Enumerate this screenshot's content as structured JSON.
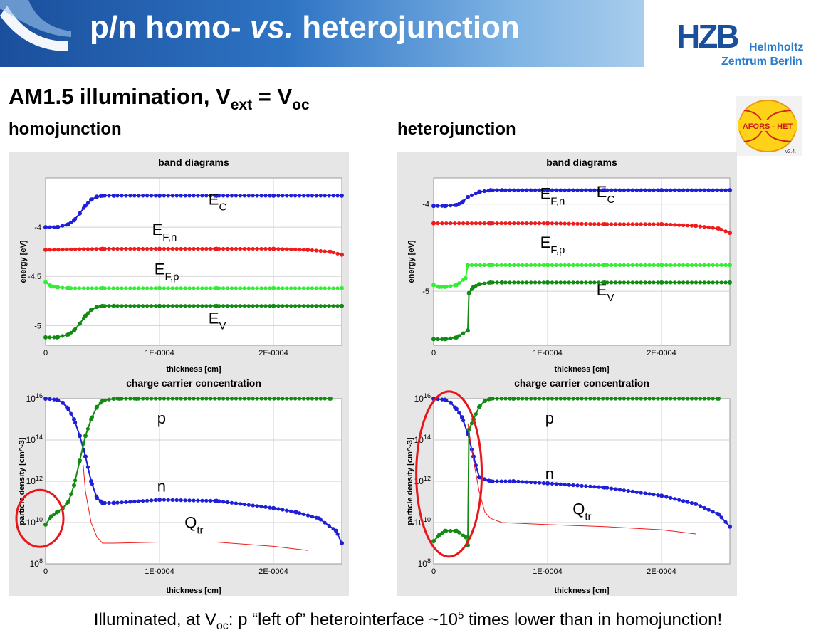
{
  "slide": {
    "title_prefix": "p/n homo- ",
    "title_vs": "vs.",
    "title_suffix": " heterojunction",
    "subtitle_main": "AM1.5 illumination, V",
    "subtitle_sub1": "ext",
    "subtitle_eq": " = V",
    "subtitle_sub2": "oc",
    "logo": {
      "hzb": "HZB",
      "line1": "Helmholtz",
      "line2": "Zentrum Berlin"
    },
    "software_logo": {
      "name": "AFORS - HET",
      "version": "v2.4."
    },
    "footer_pre": "Illuminated, at V",
    "footer_sub": "oc",
    "footer_mid": ": p “left of” heterointerface ~10",
    "footer_sup": "5",
    "footer_post": " times lower than in homojunction!",
    "colors": {
      "Ec": "#1f1fd8",
      "EFn": "#ee1c1c",
      "EFp": "#33ee33",
      "Ev": "#138a13",
      "Qtr": "#ee1c1c",
      "highlight": "#e8151a"
    }
  },
  "chart_data": [
    {
      "id": "homo-band",
      "column_title": "homojunction",
      "type": "line",
      "title": "band diagrams",
      "xlabel": "thickness [cm]",
      "ylabel": "energy [eV]",
      "xlim": [
        0,
        0.00026
      ],
      "ylim": [
        -5.2,
        -3.5
      ],
      "xticks": [
        {
          "v": 0,
          "label": "0"
        },
        {
          "v": 0.0001,
          "label": "1E-0004"
        },
        {
          "v": 0.0002,
          "label": "2E-0004"
        }
      ],
      "yticks": [
        {
          "v": -4,
          "label": "-4"
        },
        {
          "v": -4.5,
          "label": "-4.5"
        },
        {
          "v": -5,
          "label": "-5"
        }
      ],
      "log_y": false,
      "series": [
        {
          "name": "EC",
          "sub": "C",
          "color": "#1f1fd8",
          "x": [
            0,
            1e-05,
            2e-05,
            2.5e-05,
            3e-05,
            3.5e-05,
            4e-05,
            4.5e-05,
            5e-05,
            6e-05,
            0.0001,
            0.00015,
            0.0002,
            0.00026
          ],
          "y": [
            -4.0,
            -4.0,
            -3.97,
            -3.93,
            -3.86,
            -3.78,
            -3.72,
            -3.69,
            -3.68,
            -3.68,
            -3.68,
            -3.68,
            -3.68,
            -3.68
          ]
        },
        {
          "name": "EF,n",
          "sub": "F,n",
          "color": "#ee1c1c",
          "x": [
            0,
            5e-05,
            0.0001,
            0.00015,
            0.0002,
            0.00023,
            0.00025,
            0.00026
          ],
          "y": [
            -4.23,
            -4.22,
            -4.22,
            -4.22,
            -4.22,
            -4.23,
            -4.25,
            -4.28
          ]
        },
        {
          "name": "EF,p",
          "sub": "F,p",
          "color": "#33ee33",
          "x": [
            0,
            5e-06,
            1e-05,
            2e-05,
            5e-05,
            0.0001,
            0.00015,
            0.0002,
            0.00026
          ],
          "y": [
            -4.56,
            -4.6,
            -4.61,
            -4.62,
            -4.62,
            -4.62,
            -4.62,
            -4.62,
            -4.62
          ]
        },
        {
          "name": "EV",
          "sub": "V",
          "color": "#138a13",
          "x": [
            0,
            1e-05,
            2e-05,
            2.5e-05,
            3e-05,
            3.5e-05,
            4e-05,
            4.5e-05,
            5e-05,
            6e-05,
            0.0001,
            0.00015,
            0.0002,
            0.00026
          ],
          "y": [
            -5.12,
            -5.12,
            -5.09,
            -5.05,
            -4.98,
            -4.9,
            -4.84,
            -4.81,
            -4.8,
            -4.8,
            -4.8,
            -4.8,
            -4.8,
            -4.8
          ]
        }
      ],
      "annotations": [
        {
          "base": "E",
          "sub": "C",
          "x": 0.000143,
          "y": -3.77
        },
        {
          "base": "E",
          "sub": "F,n",
          "x": 9.35e-05,
          "y": -4.08
        },
        {
          "base": "E",
          "sub": "F,p",
          "x": 9.55e-05,
          "y": -4.48
        },
        {
          "base": "E",
          "sub": "V",
          "x": 0.000143,
          "y": -4.98
        }
      ]
    },
    {
      "id": "hetero-band",
      "column_title": "heterojunction",
      "type": "line",
      "title": "band diagrams",
      "xlabel": "thickness [cm]",
      "ylabel": "energy [eV]",
      "xlim": [
        0,
        0.00026
      ],
      "ylim": [
        -5.62,
        -3.7
      ],
      "xticks": [
        {
          "v": 0,
          "label": "0"
        },
        {
          "v": 0.0001,
          "label": "1E-0004"
        },
        {
          "v": 0.0002,
          "label": "2E-0004"
        }
      ],
      "yticks": [
        {
          "v": -4,
          "label": "-4"
        },
        {
          "v": -5,
          "label": "-5"
        }
      ],
      "log_y": false,
      "series": [
        {
          "name": "EC",
          "sub": "C",
          "color": "#1f1fd8",
          "x": [
            0,
            1e-05,
            2e-05,
            2.5e-05,
            3e-05,
            4e-05,
            5e-05,
            6e-05,
            0.0001,
            0.00015,
            0.0002,
            0.00026
          ],
          "y": [
            -4.02,
            -4.02,
            -4.01,
            -3.98,
            -3.92,
            -3.86,
            -3.84,
            -3.84,
            -3.84,
            -3.84,
            -3.84,
            -3.84
          ]
        },
        {
          "name": "EF,n",
          "sub": "F,n",
          "color": "#ee1c1c",
          "x": [
            0,
            5e-05,
            0.0001,
            0.00015,
            0.0002,
            0.00023,
            0.00025,
            0.00026
          ],
          "y": [
            -4.22,
            -4.22,
            -4.22,
            -4.23,
            -4.23,
            -4.25,
            -4.28,
            -4.33
          ]
        },
        {
          "name": "EF,p",
          "sub": "F,p",
          "color": "#33ee33",
          "x": [
            0,
            5e-06,
            1e-05,
            2e-05,
            2.8e-05,
            3e-05,
            5e-05,
            0.0001,
            0.00015,
            0.0002,
            0.00026
          ],
          "y": [
            -4.93,
            -4.95,
            -4.95,
            -4.93,
            -4.85,
            -4.7,
            -4.7,
            -4.7,
            -4.7,
            -4.7,
            -4.7
          ]
        },
        {
          "name": "EV",
          "sub": "V",
          "color": "#138a13",
          "x": [
            0,
            1e-05,
            2e-05,
            3e-05,
            3.1e-05,
            3.5e-05,
            4e-05,
            5e-05,
            6e-05,
            0.0001,
            0.00015,
            0.0002,
            0.00026
          ],
          "y": [
            -5.55,
            -5.55,
            -5.53,
            -5.45,
            -5.02,
            -4.95,
            -4.92,
            -4.9,
            -4.9,
            -4.9,
            -4.9,
            -4.9,
            -4.9
          ]
        }
      ],
      "annotations": [
        {
          "base": "E",
          "sub": "C",
          "x": 0.000143,
          "y": -3.92
        },
        {
          "base": "E",
          "sub": "F,n",
          "x": 9.35e-05,
          "y": -3.94
        },
        {
          "base": "E",
          "sub": "F,p",
          "x": 9.35e-05,
          "y": -4.5
        },
        {
          "base": "E",
          "sub": "V",
          "x": 0.000143,
          "y": -5.05
        }
      ]
    },
    {
      "id": "homo-carrier",
      "type": "line",
      "title": "charge carrier concentration",
      "xlabel": "thickness [cm]",
      "ylabel": "particle density [cm^-3]",
      "xlim": [
        0,
        0.00026
      ],
      "ylim": [
        8,
        16
      ],
      "log_y": true,
      "xticks": [
        {
          "v": 0,
          "label": "0"
        },
        {
          "v": 0.0001,
          "label": "1E-0004"
        },
        {
          "v": 0.0002,
          "label": "2E-0004"
        }
      ],
      "yticks": [
        {
          "v": 8,
          "base": "10",
          "exp": "8"
        },
        {
          "v": 10,
          "base": "10",
          "exp": "10"
        },
        {
          "v": 12,
          "base": "10",
          "exp": "12"
        },
        {
          "v": 14,
          "base": "10",
          "exp": "14"
        },
        {
          "v": 16,
          "base": "10",
          "exp": "16"
        }
      ],
      "series": [
        {
          "name": "n",
          "color": "#1f1fd8",
          "x": [
            0,
            1e-05,
            1.5e-05,
            2e-05,
            2.5e-05,
            3e-05,
            3.5e-05,
            4e-05,
            4.5e-05,
            5e-05,
            6e-05,
            0.0001,
            0.00015,
            0.0002,
            0.00022,
            0.00024,
            0.000255,
            0.00026
          ],
          "y": [
            16,
            15.95,
            15.8,
            15.5,
            15,
            14.2,
            13.2,
            12,
            11.2,
            10.95,
            10.95,
            11.1,
            11.05,
            10.7,
            10.5,
            10.2,
            9.6,
            9.0
          ]
        },
        {
          "name": "p",
          "color": "#138a13",
          "x": [
            0,
            5e-06,
            1e-05,
            1.5e-05,
            2e-05,
            2.5e-05,
            3e-05,
            3.5e-05,
            4e-05,
            4.5e-05,
            5e-05,
            6e-05,
            6.5e-05,
            8e-05,
            0.00025
          ],
          "y": [
            9.9,
            10.3,
            10.5,
            10.7,
            11.0,
            11.8,
            13.0,
            14.2,
            15.0,
            15.6,
            15.9,
            16,
            16,
            16,
            16
          ]
        },
        {
          "name": "Qtr",
          "sub": "tr",
          "color": "#ee1c1c",
          "x": [
            3.3e-05,
            3.5e-05,
            4e-05,
            4.5e-05,
            5e-05,
            6e-05,
            0.0001,
            0.00015,
            0.0002,
            0.00023
          ],
          "y": [
            12.8,
            11.5,
            10.0,
            9.3,
            9.0,
            9.0,
            9.05,
            9.05,
            8.85,
            8.65
          ]
        }
      ],
      "annotations": [
        {
          "base": "p",
          "sub": "",
          "x": 9.8e-05,
          "y": 14.8
        },
        {
          "base": "n",
          "sub": "",
          "x": 9.8e-05,
          "y": 11.5
        },
        {
          "base": "Q",
          "sub": "tr",
          "x": 0.000122,
          "y": 9.75
        }
      ],
      "highlight": {
        "x": -5e-06,
        "y": 10.2,
        "rx": 33,
        "ry": 40
      }
    },
    {
      "id": "hetero-carrier",
      "type": "line",
      "title": "charge carrier concentration",
      "xlabel": "thickness [cm]",
      "ylabel": "particle density [cm^-3]",
      "xlim": [
        0,
        0.00026
      ],
      "ylim": [
        8,
        16
      ],
      "log_y": true,
      "xticks": [
        {
          "v": 0,
          "label": "0"
        },
        {
          "v": 0.0001,
          "label": "1E-0004"
        },
        {
          "v": 0.0002,
          "label": "2E-0004"
        }
      ],
      "yticks": [
        {
          "v": 8,
          "base": "10",
          "exp": "8"
        },
        {
          "v": 10,
          "base": "10",
          "exp": "10"
        },
        {
          "v": 12,
          "base": "10",
          "exp": "12"
        },
        {
          "v": 14,
          "base": "10",
          "exp": "14"
        },
        {
          "v": 16,
          "base": "10",
          "exp": "16"
        }
      ],
      "series": [
        {
          "name": "n",
          "color": "#1f1fd8",
          "x": [
            0,
            1e-05,
            1.5e-05,
            2e-05,
            2.5e-05,
            3e-05,
            3.5e-05,
            4e-05,
            5e-05,
            7e-05,
            0.0001,
            0.00015,
            0.0002,
            0.00023,
            0.00025,
            0.00026
          ],
          "y": [
            16,
            15.95,
            15.8,
            15.5,
            15.1,
            14.3,
            13.2,
            12.2,
            12.0,
            12.0,
            11.9,
            11.7,
            11.3,
            10.9,
            10.4,
            9.8
          ]
        },
        {
          "name": "p",
          "color": "#138a13",
          "x": [
            0,
            5e-06,
            1e-05,
            2e-05,
            2.8e-05,
            3e-05,
            3.1e-05,
            3.5e-05,
            4e-05,
            4.5e-05,
            5e-05,
            7e-05,
            0.00025
          ],
          "y": [
            9.1,
            9.4,
            9.6,
            9.6,
            9.3,
            8.9,
            14.5,
            15.0,
            15.6,
            15.9,
            16,
            16,
            16
          ]
        },
        {
          "name": "Qtr",
          "sub": "tr",
          "color": "#ee1c1c",
          "x": [
            3e-05,
            3.5e-05,
            4e-05,
            4.5e-05,
            5e-05,
            6e-05,
            0.0001,
            0.00015,
            0.0002,
            0.00023
          ],
          "y": [
            14.8,
            13.0,
            11.5,
            10.5,
            10.2,
            10.0,
            9.9,
            9.8,
            9.65,
            9.45
          ]
        }
      ],
      "annotations": [
        {
          "base": "p",
          "sub": "",
          "x": 9.8e-05,
          "y": 14.8
        },
        {
          "base": "n",
          "sub": "",
          "x": 9.8e-05,
          "y": 12.1
        },
        {
          "base": "Q",
          "sub": "tr",
          "x": 0.000122,
          "y": 10.4
        }
      ],
      "highlight": {
        "x": 1.35e-05,
        "y": 12.35,
        "rx": 46,
        "ry": 116
      }
    }
  ]
}
